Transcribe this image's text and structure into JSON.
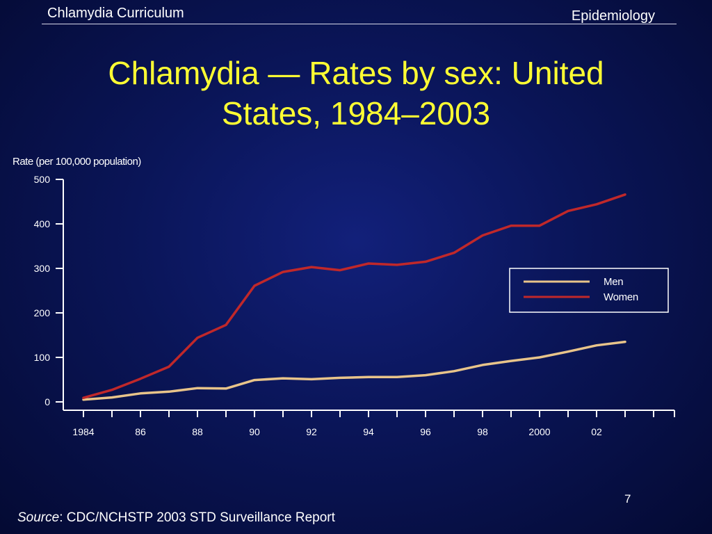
{
  "header": {
    "left": "Chlamydia Curriculum",
    "right": "Epidemiology"
  },
  "title": {
    "line1": "Chlamydia — Rates by sex: United",
    "line2": "States, 1984–2003"
  },
  "footer": {
    "page_number": "7",
    "source_label": "Source",
    "source_text": ": CDC/NCHSTP 2003 STD Surveillance Report"
  },
  "colors": {
    "background": "#0a1558",
    "title": "#ffff33",
    "men": "#e8c48a",
    "women": "#c0282a",
    "axis": "#ffffff"
  },
  "chart_data": {
    "type": "line",
    "ylabel": "Rate (per 100,000 population)",
    "xlabel": "",
    "ylim": [
      0,
      500
    ],
    "yticks": [
      0,
      100,
      200,
      300,
      400,
      500
    ],
    "xlim": [
      1984,
      2004
    ],
    "xticks": [
      {
        "year": 1984,
        "label": "1984"
      },
      {
        "year": 1986,
        "label": "86"
      },
      {
        "year": 1988,
        "label": "88"
      },
      {
        "year": 1990,
        "label": "90"
      },
      {
        "year": 1992,
        "label": "92"
      },
      {
        "year": 1994,
        "label": "94"
      },
      {
        "year": 1996,
        "label": "96"
      },
      {
        "year": 1998,
        "label": "98"
      },
      {
        "year": 2000,
        "label": "2000"
      },
      {
        "year": 2002,
        "label": "02"
      }
    ],
    "x": [
      1984,
      1985,
      1986,
      1987,
      1988,
      1989,
      1990,
      1991,
      1992,
      1993,
      1994,
      1995,
      1996,
      1997,
      1998,
      1999,
      2000,
      2001,
      2002,
      2003
    ],
    "series": [
      {
        "name": "Men",
        "color": "#e8c48a",
        "values": [
          5,
          10,
          19,
          23,
          31,
          30,
          49,
          53,
          51,
          54,
          56,
          56,
          60,
          69,
          83,
          92,
          100,
          113,
          127,
          135
        ]
      },
      {
        "name": "Women",
        "color": "#c0282a",
        "values": [
          9,
          27,
          52,
          79,
          144,
          173,
          261,
          292,
          303,
          296,
          311,
          308,
          315,
          335,
          374,
          396,
          396,
          429,
          444,
          466
        ]
      }
    ],
    "legend": {
      "placement": "right"
    },
    "grid": false
  }
}
